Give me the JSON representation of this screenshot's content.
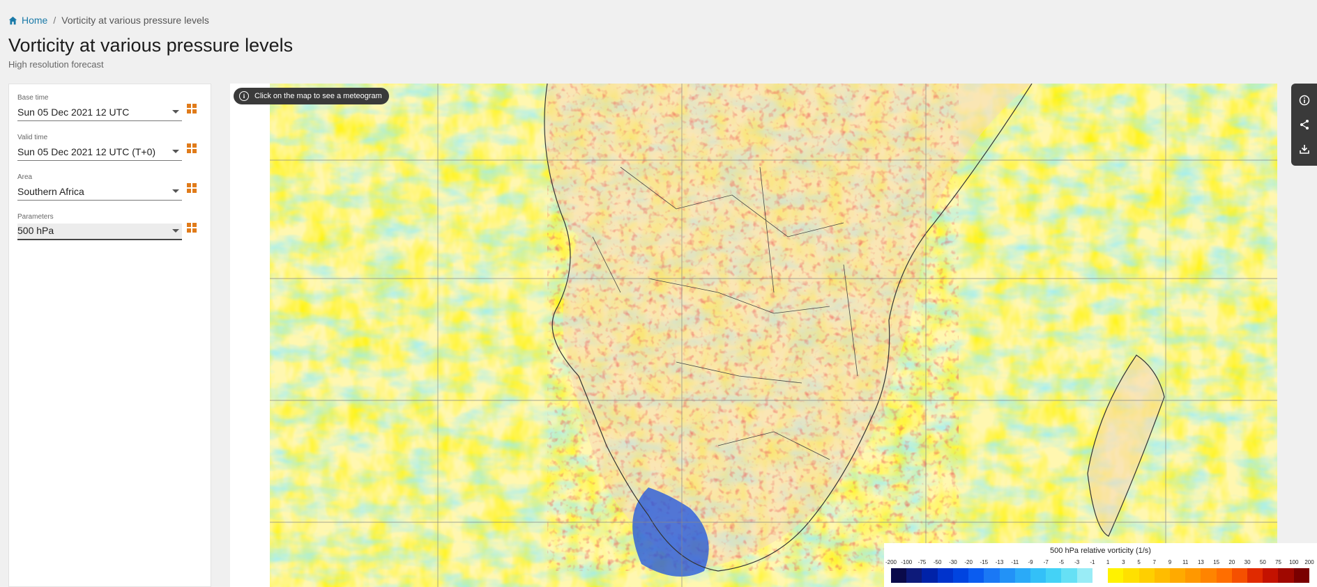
{
  "breadcrumb": {
    "home": "Home",
    "separator": "/",
    "current": "Vorticity at various pressure levels"
  },
  "page": {
    "title": "Vorticity at various pressure levels",
    "subtitle": "High resolution forecast"
  },
  "controls": {
    "base_time": {
      "label": "Base time",
      "value": "Sun 05 Dec 2021 12 UTC"
    },
    "valid_time": {
      "label": "Valid time",
      "value": "Sun 05 Dec 2021 12 UTC (T+0)"
    },
    "area": {
      "label": "Area",
      "value": "Southern Africa"
    },
    "parameters": {
      "label": "Parameters",
      "value": "500 hPa"
    }
  },
  "map": {
    "hint": "Click on the map to see a meteogram"
  },
  "toolbar": {
    "icons": [
      "info-icon",
      "share-icon",
      "download-icon"
    ]
  },
  "legend": {
    "title": "500 hPa relative vorticity (1/s)",
    "ticks": [
      "-200",
      "-100",
      "-75",
      "-50",
      "-30",
      "-20",
      "-15",
      "-13",
      "-11",
      "-9",
      "-7",
      "-5",
      "-3",
      "-1",
      "1",
      "3",
      "5",
      "7",
      "9",
      "11",
      "13",
      "15",
      "20",
      "30",
      "50",
      "75",
      "100",
      "200"
    ],
    "colors": [
      "#0a0a4a",
      "#0d1a7a",
      "#0022a8",
      "#0033cc",
      "#0044e0",
      "#0a5cf0",
      "#1a78f5",
      "#2292f7",
      "#2aaaf8",
      "#33c0f8",
      "#44d2f6",
      "#66e0f5",
      "#99ecf6",
      "#ffffff",
      "#fff200",
      "#ffe000",
      "#ffcf00",
      "#ffbc00",
      "#ffaa00",
      "#ff9800",
      "#ff8400",
      "#ff6e00",
      "#f55000",
      "#e02a00",
      "#c41200",
      "#a00800",
      "#7a0000"
    ],
    "brand_color": "#e07b1a",
    "link_color": "#1a7aa8"
  }
}
